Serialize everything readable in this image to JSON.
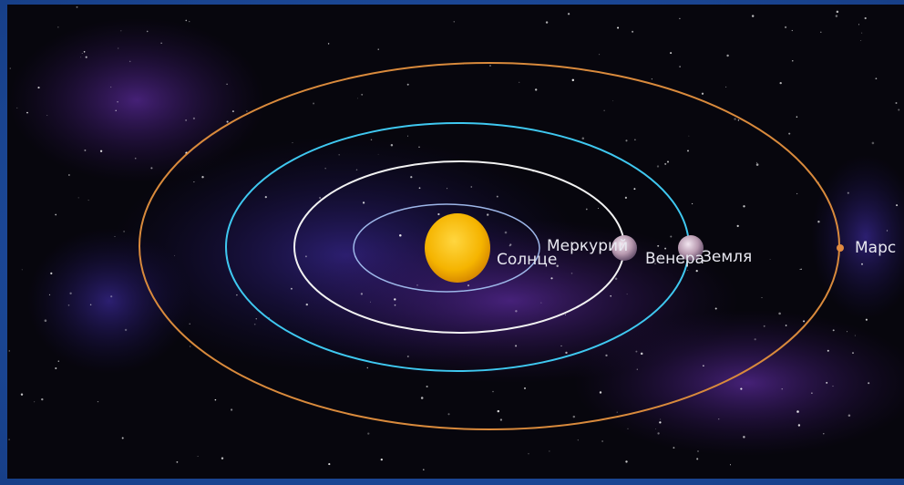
{
  "bodies": [
    {
      "label": "Солнце"
    },
    {
      "label": "Меркурий"
    },
    {
      "label": "Венера"
    },
    {
      "label": "Земля"
    },
    {
      "label": "Марс"
    }
  ]
}
